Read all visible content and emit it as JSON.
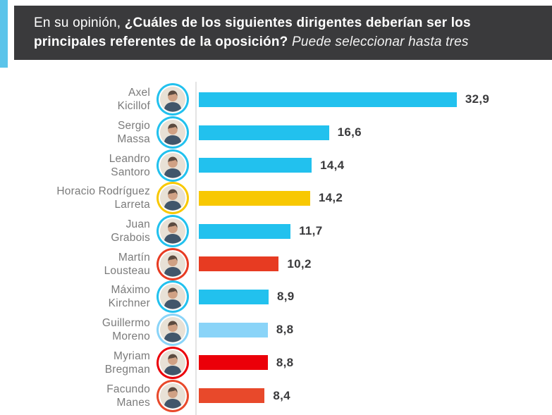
{
  "header": {
    "intro": "En su opinión,",
    "question_bold": "¿Cuáles de los siguientes dirigentes deberían ser los principales referentes de la oposición?",
    "note_italic": "Puede seleccionar hasta tres",
    "background": "#3A3A3C",
    "accent_stripe_color": "#5BC4EA",
    "text_color": "#FFFFFF"
  },
  "chart_data": {
    "type": "bar",
    "orientation": "horizontal",
    "value_format": "decimal-comma",
    "xlim": [
      0,
      35
    ],
    "grid": false,
    "legend": false,
    "axis_line_color": "#E4E4E4",
    "name_color": "#7B7B7B",
    "value_color": "#3A3A3C",
    "rows": [
      {
        "name": "Axel Kicillof",
        "lines": [
          "Axel",
          "Kicillof"
        ],
        "value": 32.9,
        "label": "32,9",
        "color": "#22C1EE"
      },
      {
        "name": "Sergio Massa",
        "lines": [
          "Sergio",
          "Massa"
        ],
        "value": 16.6,
        "label": "16,6",
        "color": "#22C1EE"
      },
      {
        "name": "Leandro Santoro",
        "lines": [
          "Leandro",
          "Santoro"
        ],
        "value": 14.4,
        "label": "14,4",
        "color": "#22C1EE"
      },
      {
        "name": "Horacio Rodríguez Larreta",
        "lines": [
          "Horacio Rodríguez",
          "Larreta"
        ],
        "value": 14.2,
        "label": "14,2",
        "color": "#F8C802"
      },
      {
        "name": "Juan Grabois",
        "lines": [
          "Juan",
          "Grabois"
        ],
        "value": 11.7,
        "label": "11,7",
        "color": "#22C1EE"
      },
      {
        "name": "Martín Lousteau",
        "lines": [
          "Martín",
          "Lousteau"
        ],
        "value": 10.2,
        "label": "10,2",
        "color": "#E73B22"
      },
      {
        "name": "Máximo Kirchner",
        "lines": [
          "Máximo",
          "Kirchner"
        ],
        "value": 8.9,
        "label": "8,9",
        "color": "#22C1EE"
      },
      {
        "name": "Guillermo Moreno",
        "lines": [
          "Guillermo",
          "Moreno"
        ],
        "value": 8.8,
        "label": "8,8",
        "color": "#8AD4F8"
      },
      {
        "name": "Myriam Bregman",
        "lines": [
          "Myriam",
          "Bregman"
        ],
        "value": 8.8,
        "label": "8,8",
        "color": "#EB0009"
      },
      {
        "name": "Facundo Manes",
        "lines": [
          "Facundo",
          "Manes"
        ],
        "value": 8.4,
        "label": "8,4",
        "color": "#E8492B"
      }
    ]
  }
}
